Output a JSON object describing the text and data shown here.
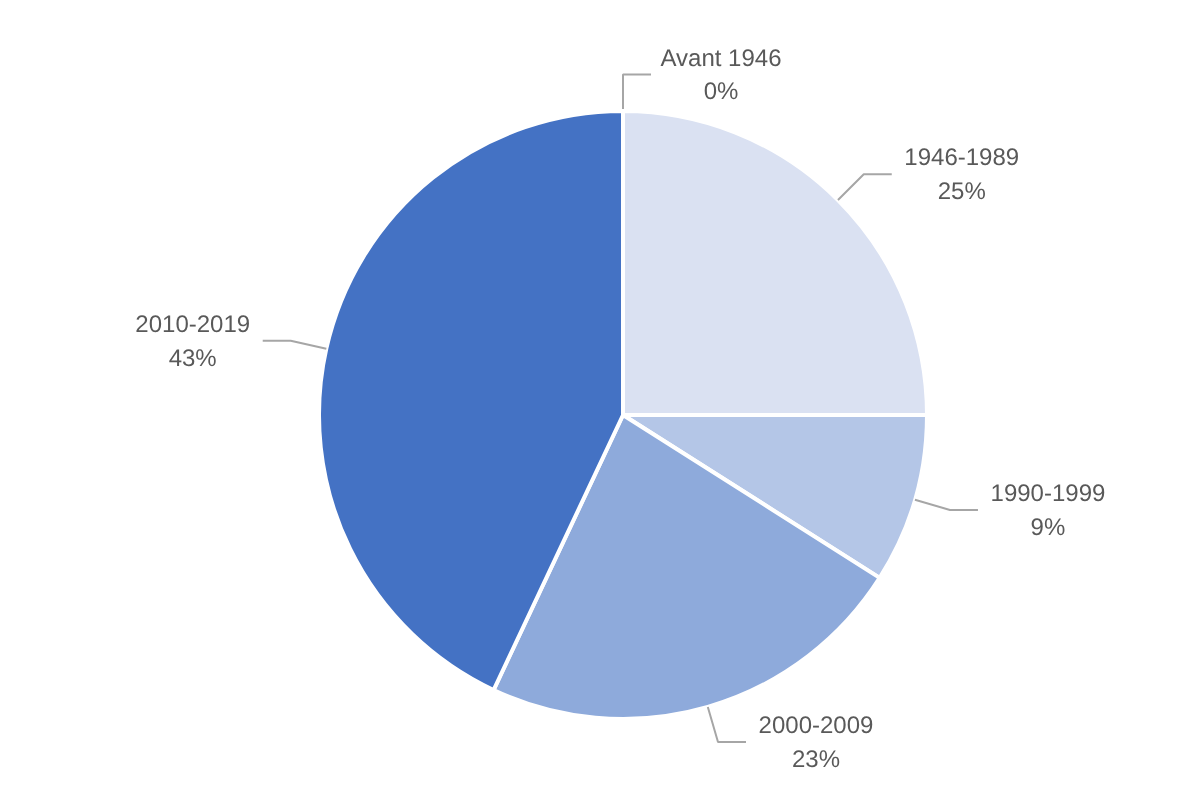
{
  "chart_data": {
    "type": "pie",
    "categories": [
      "Avant 1946",
      "1946-1989",
      "1990-1999",
      "2000-2009",
      "2010-2019"
    ],
    "values": [
      0,
      25,
      9,
      23,
      43
    ],
    "value_labels": [
      "0%",
      "25%",
      "9%",
      "23%",
      "43%"
    ],
    "colors": [
      "#eef1f9",
      "#dae1f2",
      "#b4c6e7",
      "#8eaadb",
      "#4472c4"
    ]
  }
}
